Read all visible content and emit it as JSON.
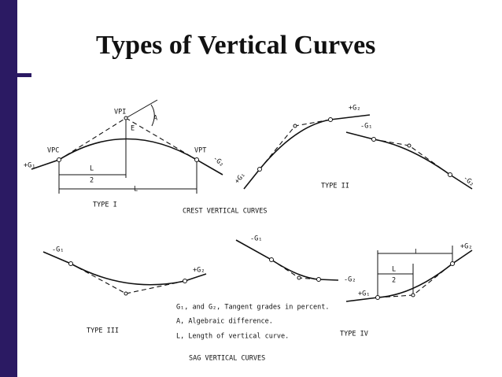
{
  "title": "Types of Vertical Curves",
  "crest": {
    "caption": "CREST VERTICAL CURVES",
    "type1": {
      "name": "TYPE I",
      "vpi": "VPI",
      "a": "A",
      "e": "E",
      "vpc": "VPC",
      "vpt": "VPT",
      "g1": "+G₁",
      "g2": "-G₂",
      "half_l_num": "L",
      "half_l_den": "2",
      "l": "L"
    },
    "type2": {
      "name": "TYPE II",
      "g2_top": "+G₂",
      "g1_left": "+G₁",
      "g1_top": "-G₁",
      "g2_right": "-G₂"
    }
  },
  "sag": {
    "caption": "SAG VERTICAL CURVES",
    "type3": {
      "name": "TYPE III",
      "g1": "-G₁",
      "g2": "+G₂"
    },
    "type4": {
      "name": "TYPE IV",
      "g1_left": "-G₁",
      "g2_left": "-G₂",
      "l": "L",
      "half_l_num": "L",
      "half_l_den": "2",
      "g1_right": "+G₁",
      "g2_right": "+G₂"
    }
  },
  "legend": [
    "G₁, and G₂, Tangent grades in percent.",
    "A, Algebraic difference.",
    "L, Length of vertical curve."
  ]
}
